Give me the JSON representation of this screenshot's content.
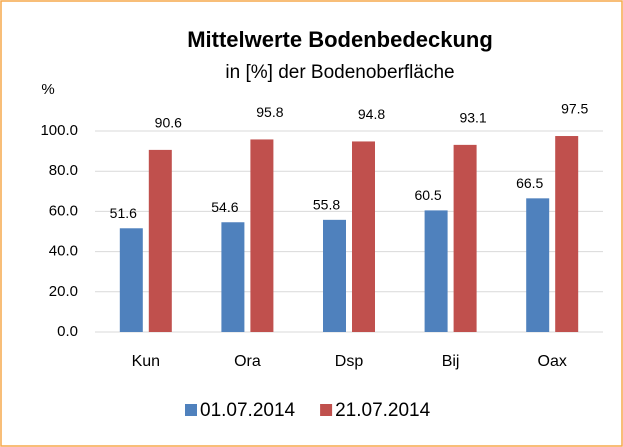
{
  "chart_data": {
    "type": "bar",
    "title": "Mittelwerte Bodenbedeckung",
    "subtitle": "in [%] der Bodenoberfläche",
    "y_label": "%",
    "categories": [
      "Kun",
      "Ora",
      "Dsp",
      "Bij",
      "Oax"
    ],
    "series": [
      {
        "name": "01.07.2014",
        "color": "#4f81bd",
        "values": [
          51.6,
          54.6,
          55.8,
          60.5,
          66.5
        ]
      },
      {
        "name": "21.07.2014",
        "color": "#c0504d",
        "values": [
          90.6,
          95.8,
          94.8,
          93.1,
          97.5
        ]
      }
    ],
    "ylim": [
      0,
      100
    ],
    "yticks": [
      {
        "value": 0,
        "label": "0.0"
      },
      {
        "value": 20,
        "label": "20.0"
      },
      {
        "value": 40,
        "label": "40.0"
      },
      {
        "value": 60,
        "label": "60.0"
      },
      {
        "value": 80,
        "label": "80.0"
      },
      {
        "value": 100,
        "label": "100.0"
      }
    ],
    "grid": true,
    "legend": "bottom"
  }
}
